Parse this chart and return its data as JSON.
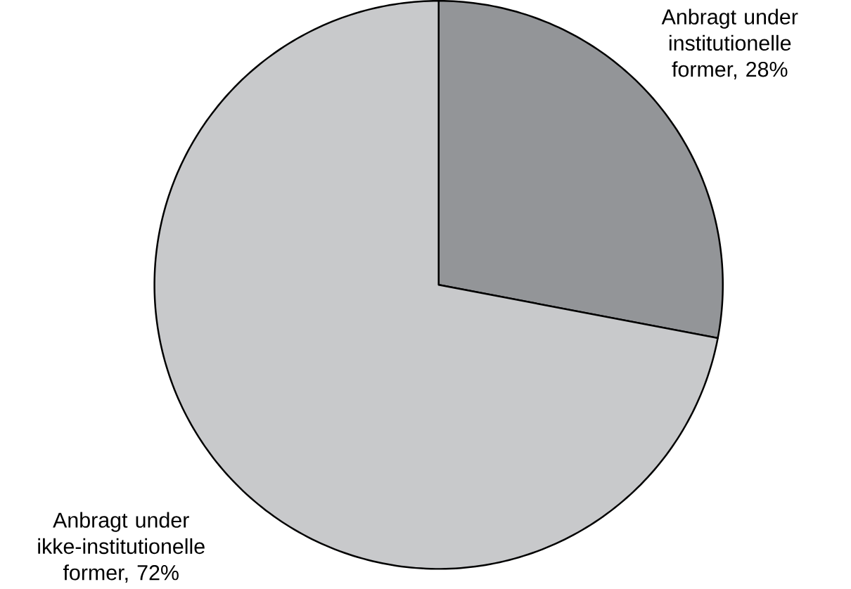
{
  "chart_data": {
    "type": "pie",
    "categories": [
      "Anbragt under institutionelle former, 28%",
      "Anbragt under ikke-institutionelle former, 72%"
    ],
    "values": [
      28,
      72
    ],
    "colors": [
      "#939598",
      "#c8c9cb"
    ]
  }
}
